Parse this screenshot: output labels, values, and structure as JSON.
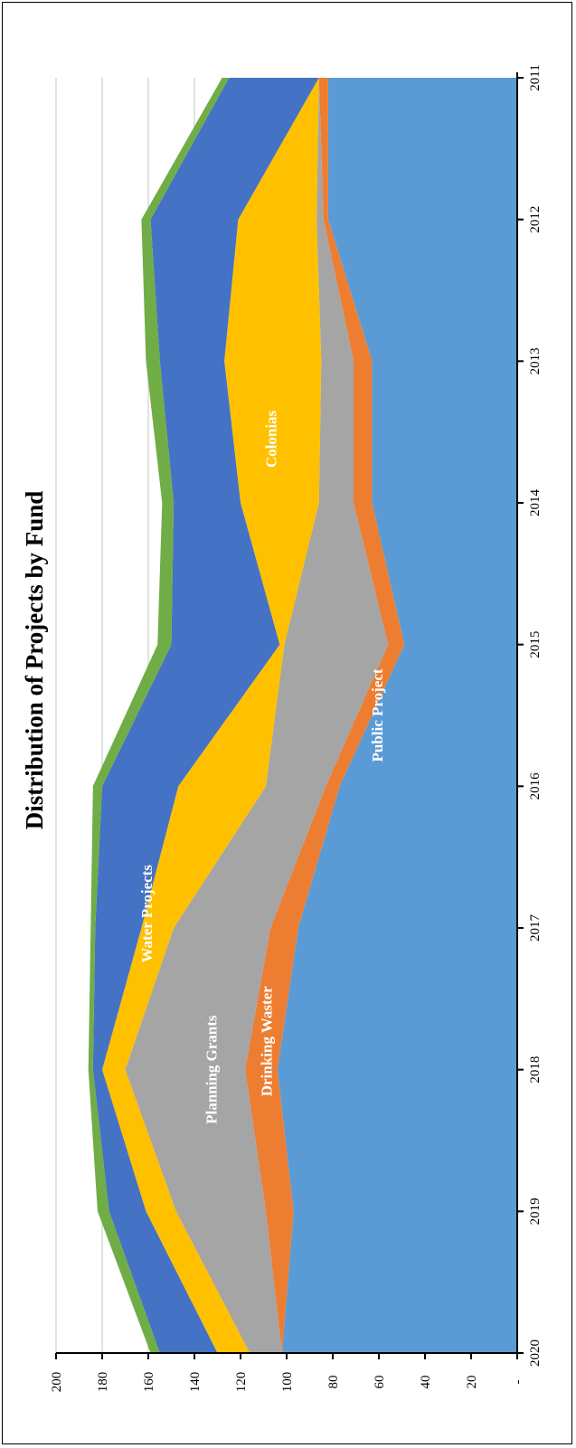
{
  "chart_data": {
    "type": "area",
    "stacked": true,
    "orientation": "rotated-90-clockwise",
    "title": "Distribution of Projects by Fund",
    "xlabel": "",
    "ylabel": "",
    "categories": [
      "2011",
      "2012",
      "2013",
      "2014",
      "2015",
      "2016",
      "2017",
      "2018",
      "2019",
      "2020"
    ],
    "y_ticks": [
      "-",
      "20",
      "40",
      "60",
      "80",
      "100",
      "120",
      "140",
      "160",
      "180",
      "200"
    ],
    "ylim": [
      0,
      200
    ],
    "grid": true,
    "legend": "none (labels inside areas)",
    "series": [
      {
        "name": "Public Project",
        "color": "#5b9bd5",
        "values": [
          82,
          82,
          63,
          63,
          49,
          77,
          95,
          104,
          97,
          102
        ]
      },
      {
        "name": "Drinking Waster",
        "color": "#ed7d31",
        "values": [
          4,
          2,
          8,
          8,
          7,
          6,
          12,
          14,
          12,
          0
        ]
      },
      {
        "name": "Planning Grants",
        "color": "#a5a5a5",
        "values": [
          0,
          3,
          14,
          15,
          45,
          26,
          42,
          52,
          39,
          14
        ]
      },
      {
        "name": "Colonias",
        "color": "#ffc000",
        "values": [
          0,
          34,
          42,
          34,
          2,
          38,
          14,
          10,
          13,
          14
        ]
      },
      {
        "name": "Water Projects",
        "color": "#4472c4",
        "values": [
          39,
          38,
          28,
          29,
          47,
          33,
          20,
          4,
          16,
          25
        ]
      },
      {
        "name": "",
        "color": "#70ad47",
        "values": [
          3,
          4,
          6,
          5,
          6,
          4,
          2,
          2,
          5,
          4
        ]
      }
    ],
    "area_labels": [
      {
        "series": "Colonias",
        "text": "Colonias",
        "at_category": 2.55,
        "at_value": 106
      },
      {
        "series": "Water Projects",
        "text": "Water Projects",
        "at_category": 5.9,
        "at_value": 160
      },
      {
        "series": "Planning Grants",
        "text": "Planning Grants",
        "at_category": 7.0,
        "at_value": 132
      },
      {
        "series": "Drinking Waster",
        "text": "Drinking Waster",
        "at_category": 6.8,
        "at_value": 108
      },
      {
        "series": "Public Project",
        "text": "Public Project",
        "at_category": 4.5,
        "at_value": 60
      }
    ]
  }
}
